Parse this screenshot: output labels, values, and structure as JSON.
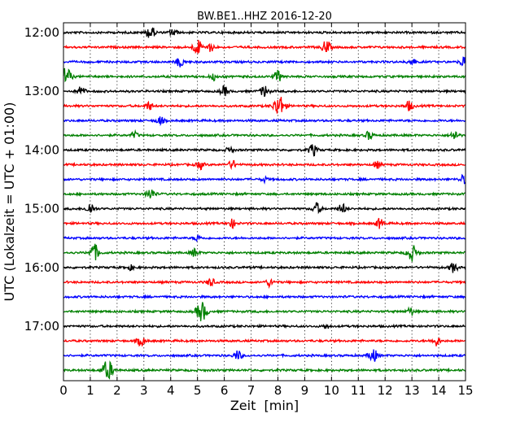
{
  "chart_data": {
    "type": "line",
    "title": "BW.BE1..HHZ 2016-12-20",
    "xlabel": "Zeit  [min]",
    "ylabel": "UTC (Lokalzeit = UTC + 01:00)",
    "xlim": [
      0,
      15
    ],
    "x_ticks": [
      "0",
      "1",
      "2",
      "3",
      "4",
      "5",
      "6",
      "7",
      "8",
      "9",
      "10",
      "11",
      "12",
      "13",
      "14",
      "15"
    ],
    "y_tick_labels": [
      "12:00",
      "13:00",
      "14:00",
      "15:00",
      "16:00",
      "17:00"
    ],
    "grid": "vertical dotted",
    "series_colors": [
      "#000000",
      "#ff0000",
      "#0000ff",
      "#008000"
    ],
    "rows": [
      {
        "start": "12:00",
        "color": "#000000",
        "events": [
          [
            3.25,
            8
          ],
          [
            4.1,
            5
          ]
        ]
      },
      {
        "start": "12:15",
        "color": "#ff0000",
        "events": [
          [
            5.0,
            9
          ],
          [
            9.8,
            8
          ],
          [
            5.5,
            5
          ]
        ]
      },
      {
        "start": "12:30",
        "color": "#0000ff",
        "events": [
          [
            4.35,
            6
          ],
          [
            13.0,
            5
          ],
          [
            14.95,
            7
          ]
        ]
      },
      {
        "start": "12:45",
        "color": "#008000",
        "events": [
          [
            0.1,
            11
          ],
          [
            8.0,
            7
          ],
          [
            5.6,
            4
          ]
        ]
      },
      {
        "start": "13:00",
        "color": "#000000",
        "events": [
          [
            0.65,
            6
          ],
          [
            6.0,
            6
          ],
          [
            7.5,
            7
          ]
        ]
      },
      {
        "start": "13:15",
        "color": "#ff0000",
        "events": [
          [
            8.05,
            13
          ],
          [
            3.2,
            5
          ],
          [
            12.9,
            6
          ]
        ]
      },
      {
        "start": "13:30",
        "color": "#0000ff",
        "events": [
          [
            3.6,
            5
          ]
        ]
      },
      {
        "start": "13:45",
        "color": "#008000",
        "events": [
          [
            2.65,
            4
          ],
          [
            11.4,
            5
          ],
          [
            14.6,
            6
          ]
        ]
      },
      {
        "start": "14:00",
        "color": "#000000",
        "events": [
          [
            9.3,
            7
          ],
          [
            6.2,
            4
          ]
        ]
      },
      {
        "start": "14:15",
        "color": "#ff0000",
        "events": [
          [
            5.1,
            5
          ],
          [
            6.3,
            5
          ],
          [
            11.7,
            4
          ]
        ]
      },
      {
        "start": "14:30",
        "color": "#0000ff",
        "events": [
          [
            14.9,
            5
          ],
          [
            7.5,
            3
          ]
        ]
      },
      {
        "start": "14:45",
        "color": "#008000",
        "events": [
          [
            3.25,
            7
          ]
        ]
      },
      {
        "start": "15:00",
        "color": "#000000",
        "events": [
          [
            1.0,
            7
          ],
          [
            9.45,
            7
          ],
          [
            10.4,
            6
          ]
        ]
      },
      {
        "start": "15:15",
        "color": "#ff0000",
        "events": [
          [
            6.3,
            5
          ],
          [
            11.8,
            6
          ]
        ]
      },
      {
        "start": "15:30",
        "color": "#0000ff",
        "events": [
          [
            5.0,
            4
          ]
        ]
      },
      {
        "start": "15:45",
        "color": "#008000",
        "events": [
          [
            1.15,
            10
          ],
          [
            13.0,
            10
          ],
          [
            4.9,
            5
          ]
        ]
      },
      {
        "start": "16:00",
        "color": "#000000",
        "events": [
          [
            14.55,
            6
          ],
          [
            2.5,
            3
          ]
        ]
      },
      {
        "start": "16:15",
        "color": "#ff0000",
        "events": [
          [
            5.5,
            5
          ],
          [
            7.7,
            5
          ]
        ]
      },
      {
        "start": "16:30",
        "color": "#0000ff",
        "events": []
      },
      {
        "start": "16:45",
        "color": "#008000",
        "events": [
          [
            5.15,
            12
          ],
          [
            12.95,
            5
          ]
        ]
      },
      {
        "start": "17:00",
        "color": "#000000",
        "events": [
          [
            9.8,
            3
          ]
        ]
      },
      {
        "start": "17:15",
        "color": "#ff0000",
        "events": [
          [
            2.9,
            6
          ],
          [
            13.9,
            6
          ]
        ]
      },
      {
        "start": "17:30",
        "color": "#0000ff",
        "events": [
          [
            6.5,
            6
          ],
          [
            11.55,
            8
          ]
        ]
      },
      {
        "start": "17:45",
        "color": "#008000",
        "events": [
          [
            1.65,
            12
          ]
        ]
      }
    ]
  }
}
